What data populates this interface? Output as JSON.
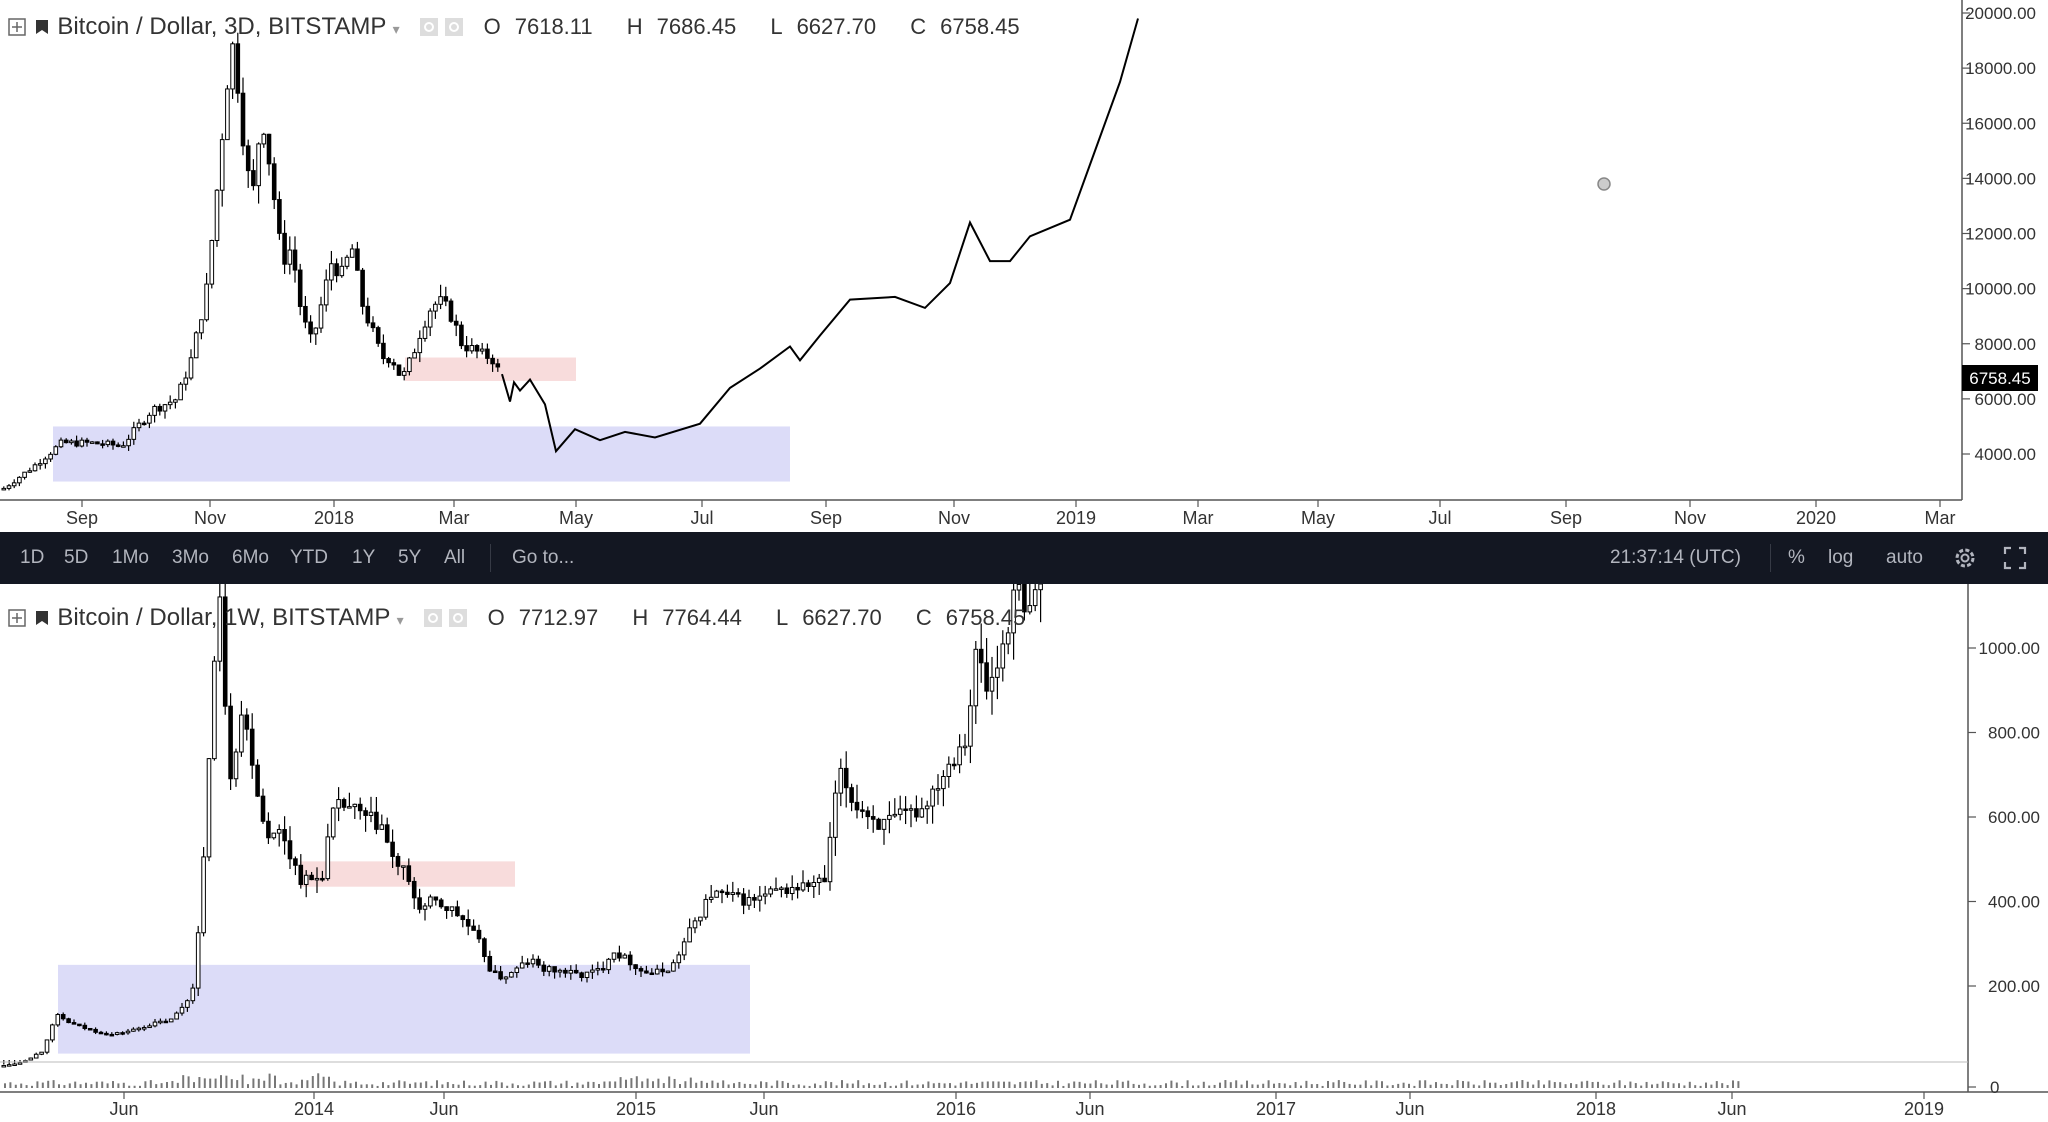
{
  "toolbar": {
    "ranges": [
      "1D",
      "5D",
      "1Mo",
      "3Mo",
      "6Mo",
      "YTD",
      "1Y",
      "5Y",
      "All"
    ],
    "goto_label": "Go to...",
    "clock": "21:37:14 (UTC)",
    "percent_label": "%",
    "log_label": "log",
    "auto_label": "auto",
    "icons": [
      "gear-icon",
      "fullscreen-icon"
    ]
  },
  "chart_data": [
    {
      "type": "candlestick",
      "title": "Bitcoin / Dollar, 3D, BITSTAMP",
      "ohlc": {
        "open_label": "O",
        "open": "7618.11",
        "high_label": "H",
        "high": "7686.45",
        "low_label": "L",
        "low": "6627.70",
        "close_label": "C",
        "close": "6758.45"
      },
      "last_price_label": "6758.45",
      "y_ticks": [
        "4000.00",
        "6000.00",
        "8000.00",
        "10000.00",
        "12000.00",
        "14000.00",
        "16000.00",
        "18000.00",
        "20000.00"
      ],
      "x_ticks": [
        "Sep",
        "Nov",
        "2018",
        "Mar",
        "May",
        "Jul",
        "Sep",
        "Nov",
        "2019",
        "Mar",
        "May",
        "Jul",
        "Sep",
        "Nov",
        "2020",
        "Mar"
      ],
      "price_path": [
        [
          0,
          2700
        ],
        [
          30,
          3500
        ],
        [
          60,
          4400
        ],
        [
          90,
          4400
        ],
        [
          120,
          4300
        ],
        [
          150,
          5600
        ],
        [
          175,
          6000
        ],
        [
          190,
          7500
        ],
        [
          205,
          10000
        ],
        [
          215,
          13500
        ],
        [
          225,
          17500
        ],
        [
          232,
          19000
        ],
        [
          240,
          16000
        ],
        [
          250,
          13000
        ],
        [
          260,
          16500
        ],
        [
          270,
          14000
        ],
        [
          280,
          11000
        ],
        [
          290,
          11500
        ],
        [
          300,
          9000
        ],
        [
          310,
          8000
        ],
        [
          320,
          9500
        ],
        [
          330,
          11000
        ],
        [
          340,
          10500
        ],
        [
          350,
          11500
        ],
        [
          360,
          9500
        ],
        [
          370,
          8500
        ],
        [
          380,
          7500
        ],
        [
          390,
          7500
        ],
        [
          400,
          6700
        ],
        [
          410,
          7500
        ],
        [
          420,
          8600
        ],
        [
          430,
          9400
        ],
        [
          440,
          9500
        ],
        [
          450,
          9000
        ],
        [
          460,
          8000
        ],
        [
          470,
          7800
        ],
        [
          480,
          7600
        ],
        [
          490,
          7500
        ],
        [
          500,
          6758
        ]
      ],
      "projection_path": [
        [
          502,
          6900
        ],
        [
          510,
          5900
        ],
        [
          514,
          6600
        ],
        [
          520,
          6300
        ],
        [
          530,
          6700
        ],
        [
          545,
          5800
        ],
        [
          556,
          4100
        ],
        [
          575,
          4900
        ],
        [
          600,
          4500
        ],
        [
          625,
          4800
        ],
        [
          655,
          4600
        ],
        [
          700,
          5100
        ],
        [
          730,
          6400
        ],
        [
          760,
          7100
        ],
        [
          790,
          7900
        ],
        [
          800,
          7400
        ],
        [
          820,
          8300
        ],
        [
          850,
          9600
        ],
        [
          895,
          9700
        ],
        [
          925,
          9300
        ],
        [
          950,
          10200
        ],
        [
          970,
          12400
        ],
        [
          990,
          11000
        ],
        [
          1010,
          11000
        ],
        [
          1030,
          11900
        ],
        [
          1070,
          12500
        ],
        [
          1100,
          15500
        ],
        [
          1120,
          17500
        ],
        [
          1138,
          19800
        ]
      ],
      "zones": [
        {
          "kind": "support",
          "x0": 53,
          "x1": 790,
          "y0": 3000,
          "y1": 5000,
          "color": "#dcdcf8"
        },
        {
          "kind": "resistance",
          "x0": 405,
          "x1": 576,
          "y0": 6650,
          "y1": 7500,
          "color": "#f8dcdc"
        }
      ]
    },
    {
      "type": "candlestick",
      "title": "Bitcoin / Dollar, 1W, BITSTAMP",
      "ohlc": {
        "open_label": "O",
        "open": "7712.97",
        "high_label": "H",
        "high": "7764.44",
        "low_label": "L",
        "low": "6627.70",
        "close_label": "C",
        "close": "6758.45"
      },
      "y_ticks": [
        "0",
        "200.00",
        "400.00",
        "600.00",
        "800.00",
        "1000.00"
      ],
      "x_ticks": [
        "Jun",
        "2014",
        "Jun",
        "2015",
        "Jun",
        "2016",
        "Jun",
        "2017",
        "Jun",
        "2018",
        "Jun",
        "2019"
      ],
      "price_path": [
        [
          0,
          10
        ],
        [
          20,
          20
        ],
        [
          40,
          45
        ],
        [
          55,
          130
        ],
        [
          70,
          110
        ],
        [
          90,
          95
        ],
        [
          110,
          85
        ],
        [
          130,
          95
        ],
        [
          150,
          110
        ],
        [
          170,
          120
        ],
        [
          190,
          180
        ],
        [
          200,
          400
        ],
        [
          210,
          900
        ],
        [
          218,
          1100
        ],
        [
          228,
          700
        ],
        [
          240,
          850
        ],
        [
          250,
          750
        ],
        [
          260,
          600
        ],
        [
          270,
          550
        ],
        [
          280,
          570
        ],
        [
          290,
          500
        ],
        [
          300,
          450
        ],
        [
          310,
          450
        ],
        [
          320,
          460
        ],
        [
          330,
          600
        ],
        [
          340,
          630
        ],
        [
          350,
          620
        ],
        [
          360,
          600
        ],
        [
          370,
          590
        ],
        [
          380,
          580
        ],
        [
          390,
          500
        ],
        [
          400,
          480
        ],
        [
          410,
          420
        ],
        [
          420,
          380
        ],
        [
          430,
          400
        ],
        [
          440,
          390
        ],
        [
          450,
          380
        ],
        [
          460,
          360
        ],
        [
          470,
          330
        ],
        [
          480,
          290
        ],
        [
          490,
          230
        ],
        [
          500,
          220
        ],
        [
          510,
          230
        ],
        [
          520,
          250
        ],
        [
          530,
          260
        ],
        [
          540,
          240
        ],
        [
          560,
          235
        ],
        [
          580,
          225
        ],
        [
          600,
          240
        ],
        [
          610,
          285
        ],
        [
          620,
          270
        ],
        [
          630,
          255
        ],
        [
          640,
          235
        ],
        [
          650,
          230
        ],
        [
          660,
          235
        ],
        [
          670,
          245
        ],
        [
          680,
          290
        ],
        [
          690,
          340
        ],
        [
          700,
          380
        ],
        [
          710,
          420
        ],
        [
          730,
          410
        ],
        [
          750,
          400
        ],
        [
          770,
          420
        ],
        [
          790,
          430
        ],
        [
          810,
          440
        ],
        [
          825,
          450
        ],
        [
          832,
          640
        ],
        [
          840,
          700
        ],
        [
          850,
          640
        ],
        [
          860,
          620
        ],
        [
          870,
          600
        ],
        [
          880,
          580
        ],
        [
          900,
          600
        ],
        [
          920,
          620
        ],
        [
          935,
          680
        ],
        [
          950,
          740
        ],
        [
          965,
          800
        ],
        [
          975,
          1000
        ],
        [
          985,
          900
        ],
        [
          995,
          950
        ],
        [
          1005,
          1050
        ],
        [
          1015,
          1150
        ],
        [
          1025,
          1050
        ],
        [
          1035,
          1150
        ],
        [
          1042,
          1180
        ]
      ],
      "zones": [
        {
          "kind": "support",
          "x0": 58,
          "x1": 750,
          "y0": 40,
          "y1": 250,
          "color": "#dcdcf8"
        },
        {
          "kind": "resistance",
          "x0": 300,
          "x1": 515,
          "y0": 435,
          "y1": 495,
          "color": "#f8dcdc"
        }
      ]
    }
  ]
}
